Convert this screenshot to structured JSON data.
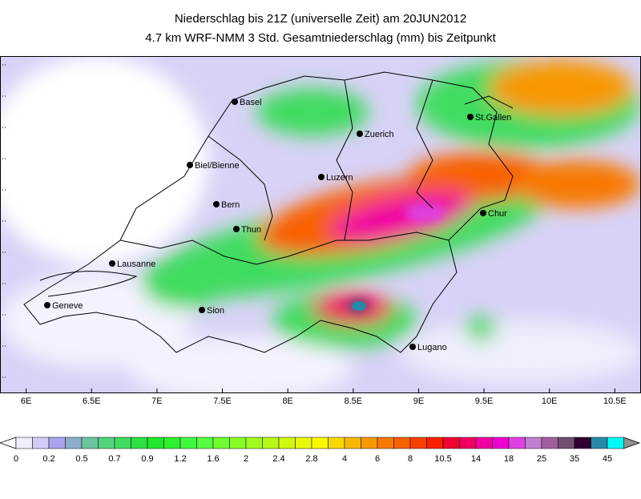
{
  "title": "Niederschlag bis 21Z (universelle Zeit) am 20JUN2012",
  "subtitle": "4.7 km WRF-NMM 3 Std. Gesamtniederschlag (mm) bis Zeitpunkt",
  "map": {
    "xlim": [
      5.8,
      10.7
    ],
    "xticks": [
      {
        "value": 6,
        "label": "6E"
      },
      {
        "value": 6.5,
        "label": "6.5E"
      },
      {
        "value": 7,
        "label": "7E"
      },
      {
        "value": 7.5,
        "label": "7.5E"
      },
      {
        "value": 8,
        "label": "8E"
      },
      {
        "value": 8.5,
        "label": "8.5E"
      },
      {
        "value": 9,
        "label": "9E"
      },
      {
        "value": 9.5,
        "label": "9.5E"
      },
      {
        "value": 10,
        "label": "10E"
      },
      {
        "value": 10.5,
        "label": "10.5E"
      }
    ],
    "cities": [
      "Basel",
      "Zuerich",
      "St.Gallen",
      "Biel/Bienne",
      "Luzern",
      "Bern",
      "Chur",
      "Thun",
      "Lausanne",
      "Sion",
      "Geneve",
      "Lugano"
    ]
  },
  "colorbar": {
    "ticks": [
      0,
      0.2,
      0.5,
      0.7,
      0.9,
      1.2,
      1.6,
      2,
      2.4,
      2.8,
      4,
      6,
      8,
      10.5,
      14,
      18,
      25,
      35,
      45
    ],
    "colors": [
      "#eeeefc",
      "#d4ccf6",
      "#aaa4ee",
      "#8cb0cc",
      "#6cc4a0",
      "#52d47c",
      "#40dc60",
      "#2ee044",
      "#20e82a",
      "#30f030",
      "#40f840",
      "#58fc40",
      "#70fc30",
      "#88fc28",
      "#a0fc20",
      "#b8f818",
      "#d0f810",
      "#e8f808",
      "#f8f800",
      "#f8d800",
      "#f8b800",
      "#f89800",
      "#f87800",
      "#f86000",
      "#f84000",
      "#f82000",
      "#f00030",
      "#f00060",
      "#f000a0",
      "#f000d0",
      "#e040e0",
      "#c080d0",
      "#a060a0",
      "#705070",
      "#300030",
      "#2888a8",
      "#00f8f8"
    ]
  }
}
